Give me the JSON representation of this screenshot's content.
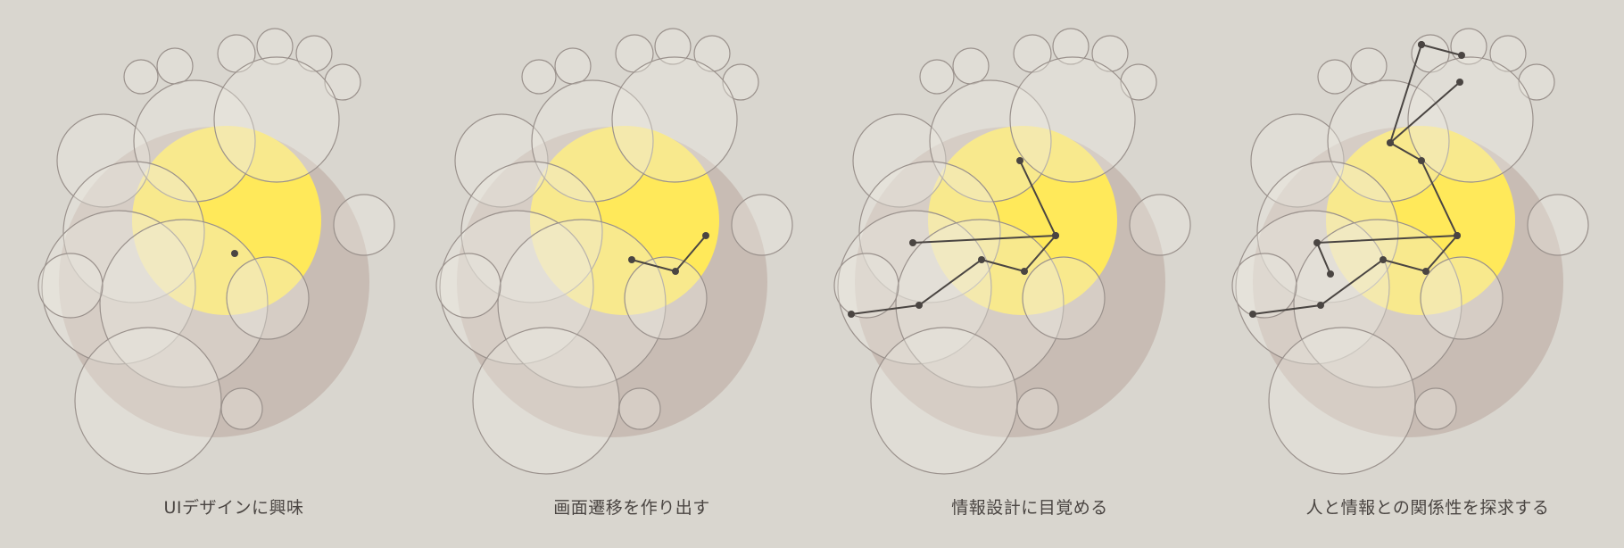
{
  "colors": {
    "background": "#d9d6cf",
    "big_circle": "#c8bcb4",
    "sun": "#ffe95a",
    "bubble_fill": "#ece9e3",
    "bubble_stroke": "#9a918c",
    "line": "#4a4542"
  },
  "stages": [
    {
      "caption": "UIデザインに興味"
    },
    {
      "caption": "画面遷移を作り出す"
    },
    {
      "caption": "情報設計に目覚める"
    },
    {
      "caption": "人と情報との関係性を探求する"
    }
  ]
}
